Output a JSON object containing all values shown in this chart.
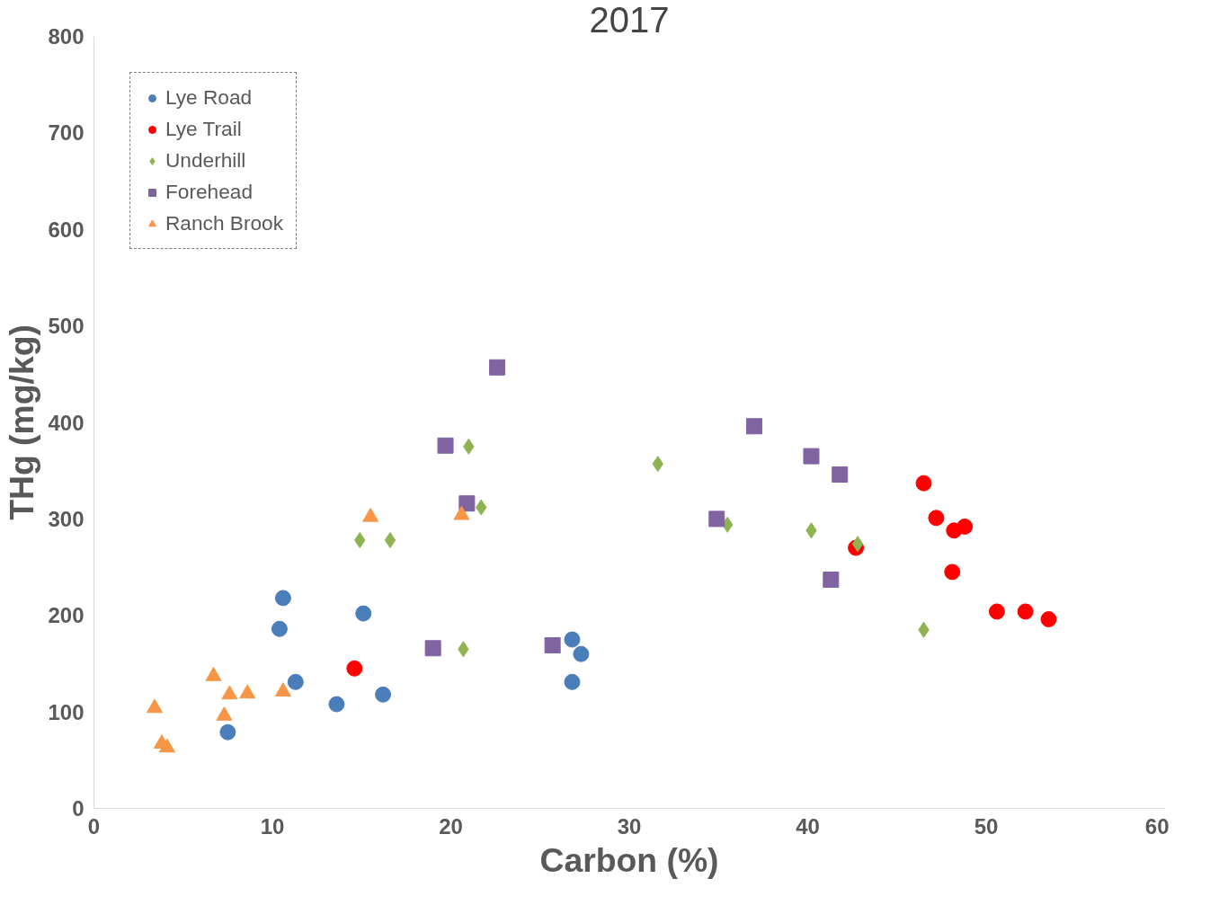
{
  "chart_data": {
    "type": "scatter",
    "title": "2017",
    "xlabel": "Carbon (%)",
    "ylabel": "THg (mg/kg)",
    "xlim": [
      0,
      60
    ],
    "xticks": [
      0,
      10,
      20,
      30,
      40,
      50,
      60
    ],
    "ylim": [
      0,
      800
    ],
    "yticks": [
      0,
      100,
      200,
      300,
      400,
      500,
      600,
      700,
      800
    ],
    "grid": false,
    "legend": "top left",
    "series": [
      {
        "name": "Lye Road",
        "color": "#4a7ebb",
        "marker": "circle",
        "x": [
          7.5,
          10.4,
          10.6,
          11.3,
          13.6,
          15.1,
          16.2,
          26.8,
          26.8,
          27.3
        ],
        "values": [
          79,
          186,
          218,
          131,
          108,
          202,
          118,
          175,
          131,
          160
        ]
      },
      {
        "name": "Lye Trail",
        "color": "#ff0000",
        "marker": "circle",
        "x": [
          14.6,
          46.5,
          47.2,
          42.7,
          48.1,
          48.2,
          48.8,
          50.6,
          52.2,
          53.5
        ],
        "values": [
          145,
          337,
          301,
          270,
          245,
          288,
          292,
          204,
          204,
          196
        ]
      },
      {
        "name": "Underhill",
        "color": "#8db450",
        "marker": "diamond",
        "x": [
          14.9,
          16.6,
          21.0,
          21.7,
          20.7,
          31.6,
          35.5,
          40.2,
          42.8,
          46.5
        ],
        "values": [
          278,
          278,
          375,
          312,
          165,
          357,
          294,
          288,
          274,
          185
        ]
      },
      {
        "name": "Forehead",
        "color": "#8064a2",
        "marker": "square",
        "x": [
          19.7,
          22.6,
          20.9,
          19.0,
          25.7,
          34.9,
          37.0,
          40.2,
          41.8,
          41.3
        ],
        "values": [
          376,
          457,
          316,
          166,
          169,
          300,
          396,
          365,
          346,
          237
        ]
      },
      {
        "name": "Ranch Brook",
        "color": "#f79646",
        "marker": "triangle",
        "x": [
          3.4,
          3.8,
          4.1,
          6.7,
          7.3,
          7.6,
          8.6,
          10.6,
          15.5,
          20.6
        ],
        "values": [
          104,
          67,
          63,
          137,
          96,
          118,
          119,
          121,
          302,
          304
        ]
      }
    ]
  }
}
